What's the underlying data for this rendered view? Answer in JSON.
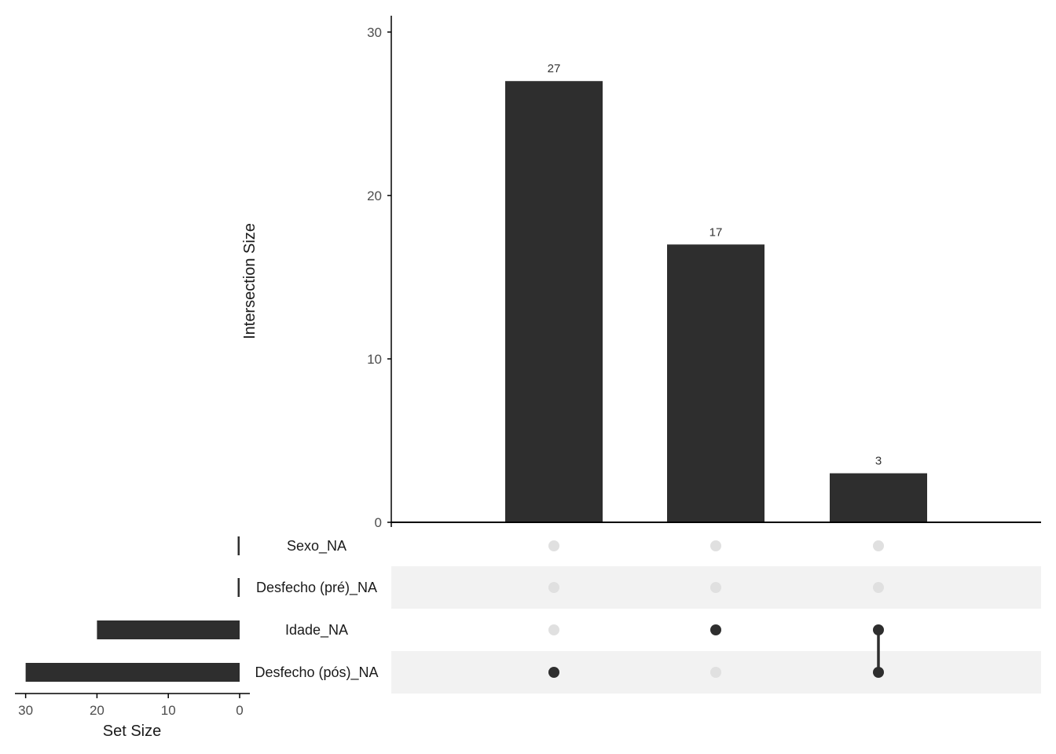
{
  "chart_data": {
    "type": "upset",
    "intersection_axis": {
      "title": "Intersection Size",
      "ylim": [
        0,
        31
      ],
      "ticks": [
        0,
        10,
        20,
        30
      ]
    },
    "set_size_axis": {
      "title": "Set Size",
      "xlim": [
        31.5,
        0
      ],
      "ticks": [
        30,
        20,
        10,
        0
      ]
    },
    "sets": [
      {
        "name": "Sexo_NA",
        "size": 0
      },
      {
        "name": "Desfecho (pré)_NA",
        "size": 0
      },
      {
        "name": "Idade_NA",
        "size": 20
      },
      {
        "name": "Desfecho (pós)_NA",
        "size": 30
      }
    ],
    "intersections": [
      {
        "size": 27,
        "label": "27",
        "members": [
          "Desfecho (pós)_NA"
        ]
      },
      {
        "size": 17,
        "label": "17",
        "members": [
          "Idade_NA"
        ]
      },
      {
        "size": 3,
        "label": "3",
        "members": [
          "Idade_NA",
          "Desfecho (pós)_NA"
        ]
      }
    ],
    "colors": {
      "bar": "#2e2e2e",
      "dot_active": "#2e2e2e",
      "dot_inactive": "#e0e0e0",
      "stripe": "#f2f2f2",
      "axis": "#000000"
    }
  }
}
